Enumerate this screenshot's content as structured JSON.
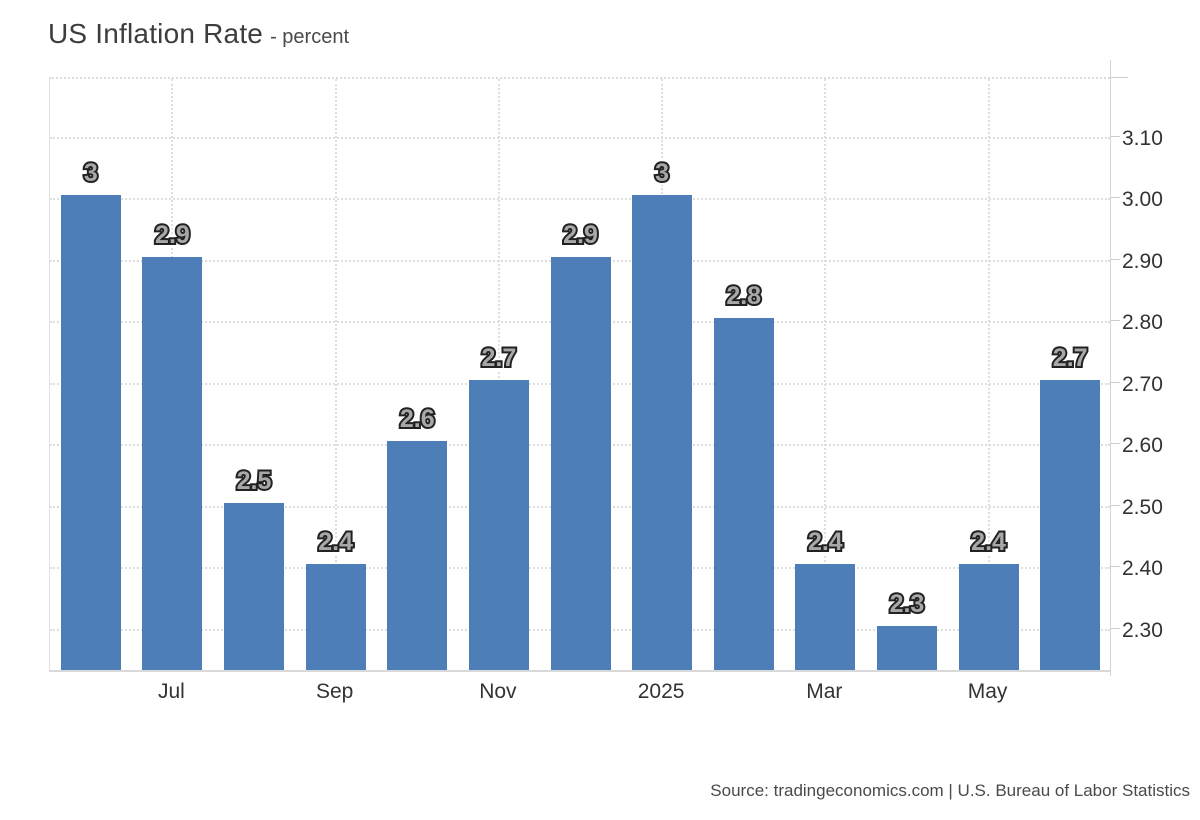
{
  "header": {
    "title": "US Inflation Rate",
    "subtitle": "- percent"
  },
  "footer": {
    "source": "Source: tradingeconomics.com | U.S. Bureau of Labor Statistics"
  },
  "chart_data": {
    "type": "bar",
    "title": "US Inflation Rate",
    "ylabel_unit": "percent",
    "values": [
      3,
      2.9,
      2.5,
      2.4,
      2.6,
      2.7,
      2.9,
      3,
      2.8,
      2.4,
      2.3,
      2.4,
      2.7
    ],
    "bar_labels": [
      "3",
      "2.9",
      "2.5",
      "2.4",
      "2.6",
      "2.7",
      "2.9",
      "3",
      "2.8",
      "2.4",
      "2.3",
      "2.4",
      "2.7"
    ],
    "x_ticks": [
      {
        "slot": 1,
        "label": "Jul"
      },
      {
        "slot": 3,
        "label": "Sep"
      },
      {
        "slot": 5,
        "label": "Nov"
      },
      {
        "slot": 7,
        "label": "2025"
      },
      {
        "slot": 9,
        "label": "Mar"
      },
      {
        "slot": 11,
        "label": "May"
      }
    ],
    "y_ticks": [
      "3.10",
      "3.00",
      "2.90",
      "2.80",
      "2.70",
      "2.60",
      "2.50",
      "2.40",
      "2.30"
    ],
    "ylim": [
      2.228,
      3.196
    ],
    "grid": "dotted",
    "legend": "none",
    "y_axis_position": "right",
    "colors": {
      "bar": "#4d7eb7",
      "bar_label_fill": "#a8a8a8",
      "bar_label_outline": "#222222",
      "axis_text": "#333333",
      "grid_line": "#dedede"
    }
  }
}
